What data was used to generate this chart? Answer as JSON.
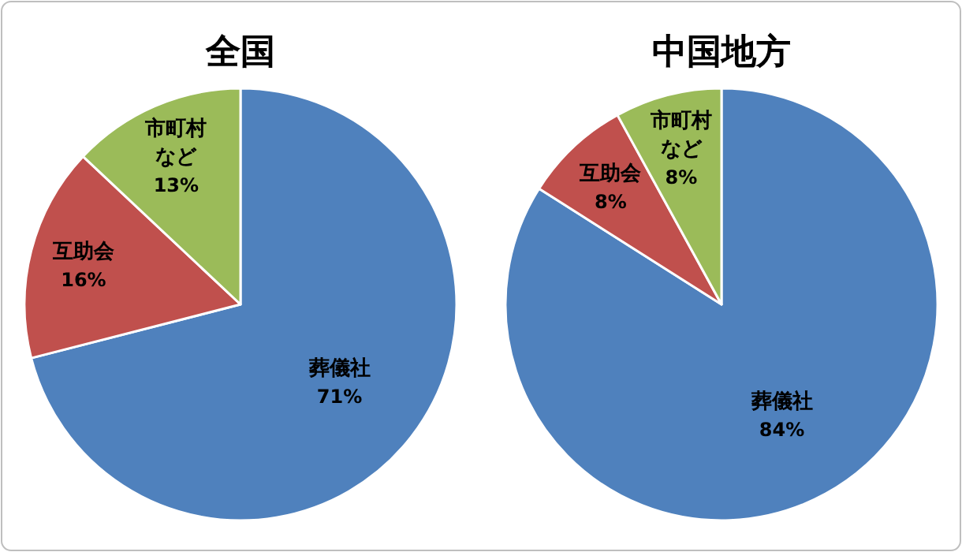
{
  "chart_data": [
    {
      "type": "pie",
      "title": "全国",
      "categories": [
        "葬儀社",
        "互助会",
        "市町村など"
      ],
      "values": [
        71,
        16,
        13
      ],
      "colors": [
        "#4f81bd",
        "#c0504d",
        "#9bbb59"
      ],
      "value_labels": [
        "71%",
        "16%",
        "13%"
      ],
      "legend": false
    },
    {
      "type": "pie",
      "title": "中国地方",
      "categories": [
        "葬儀社",
        "互助会",
        "市町村など"
      ],
      "values": [
        84,
        8,
        8
      ],
      "colors": [
        "#4f81bd",
        "#c0504d",
        "#9bbb59"
      ],
      "value_labels": [
        "84%",
        "8%",
        "8%"
      ],
      "legend": false
    }
  ]
}
